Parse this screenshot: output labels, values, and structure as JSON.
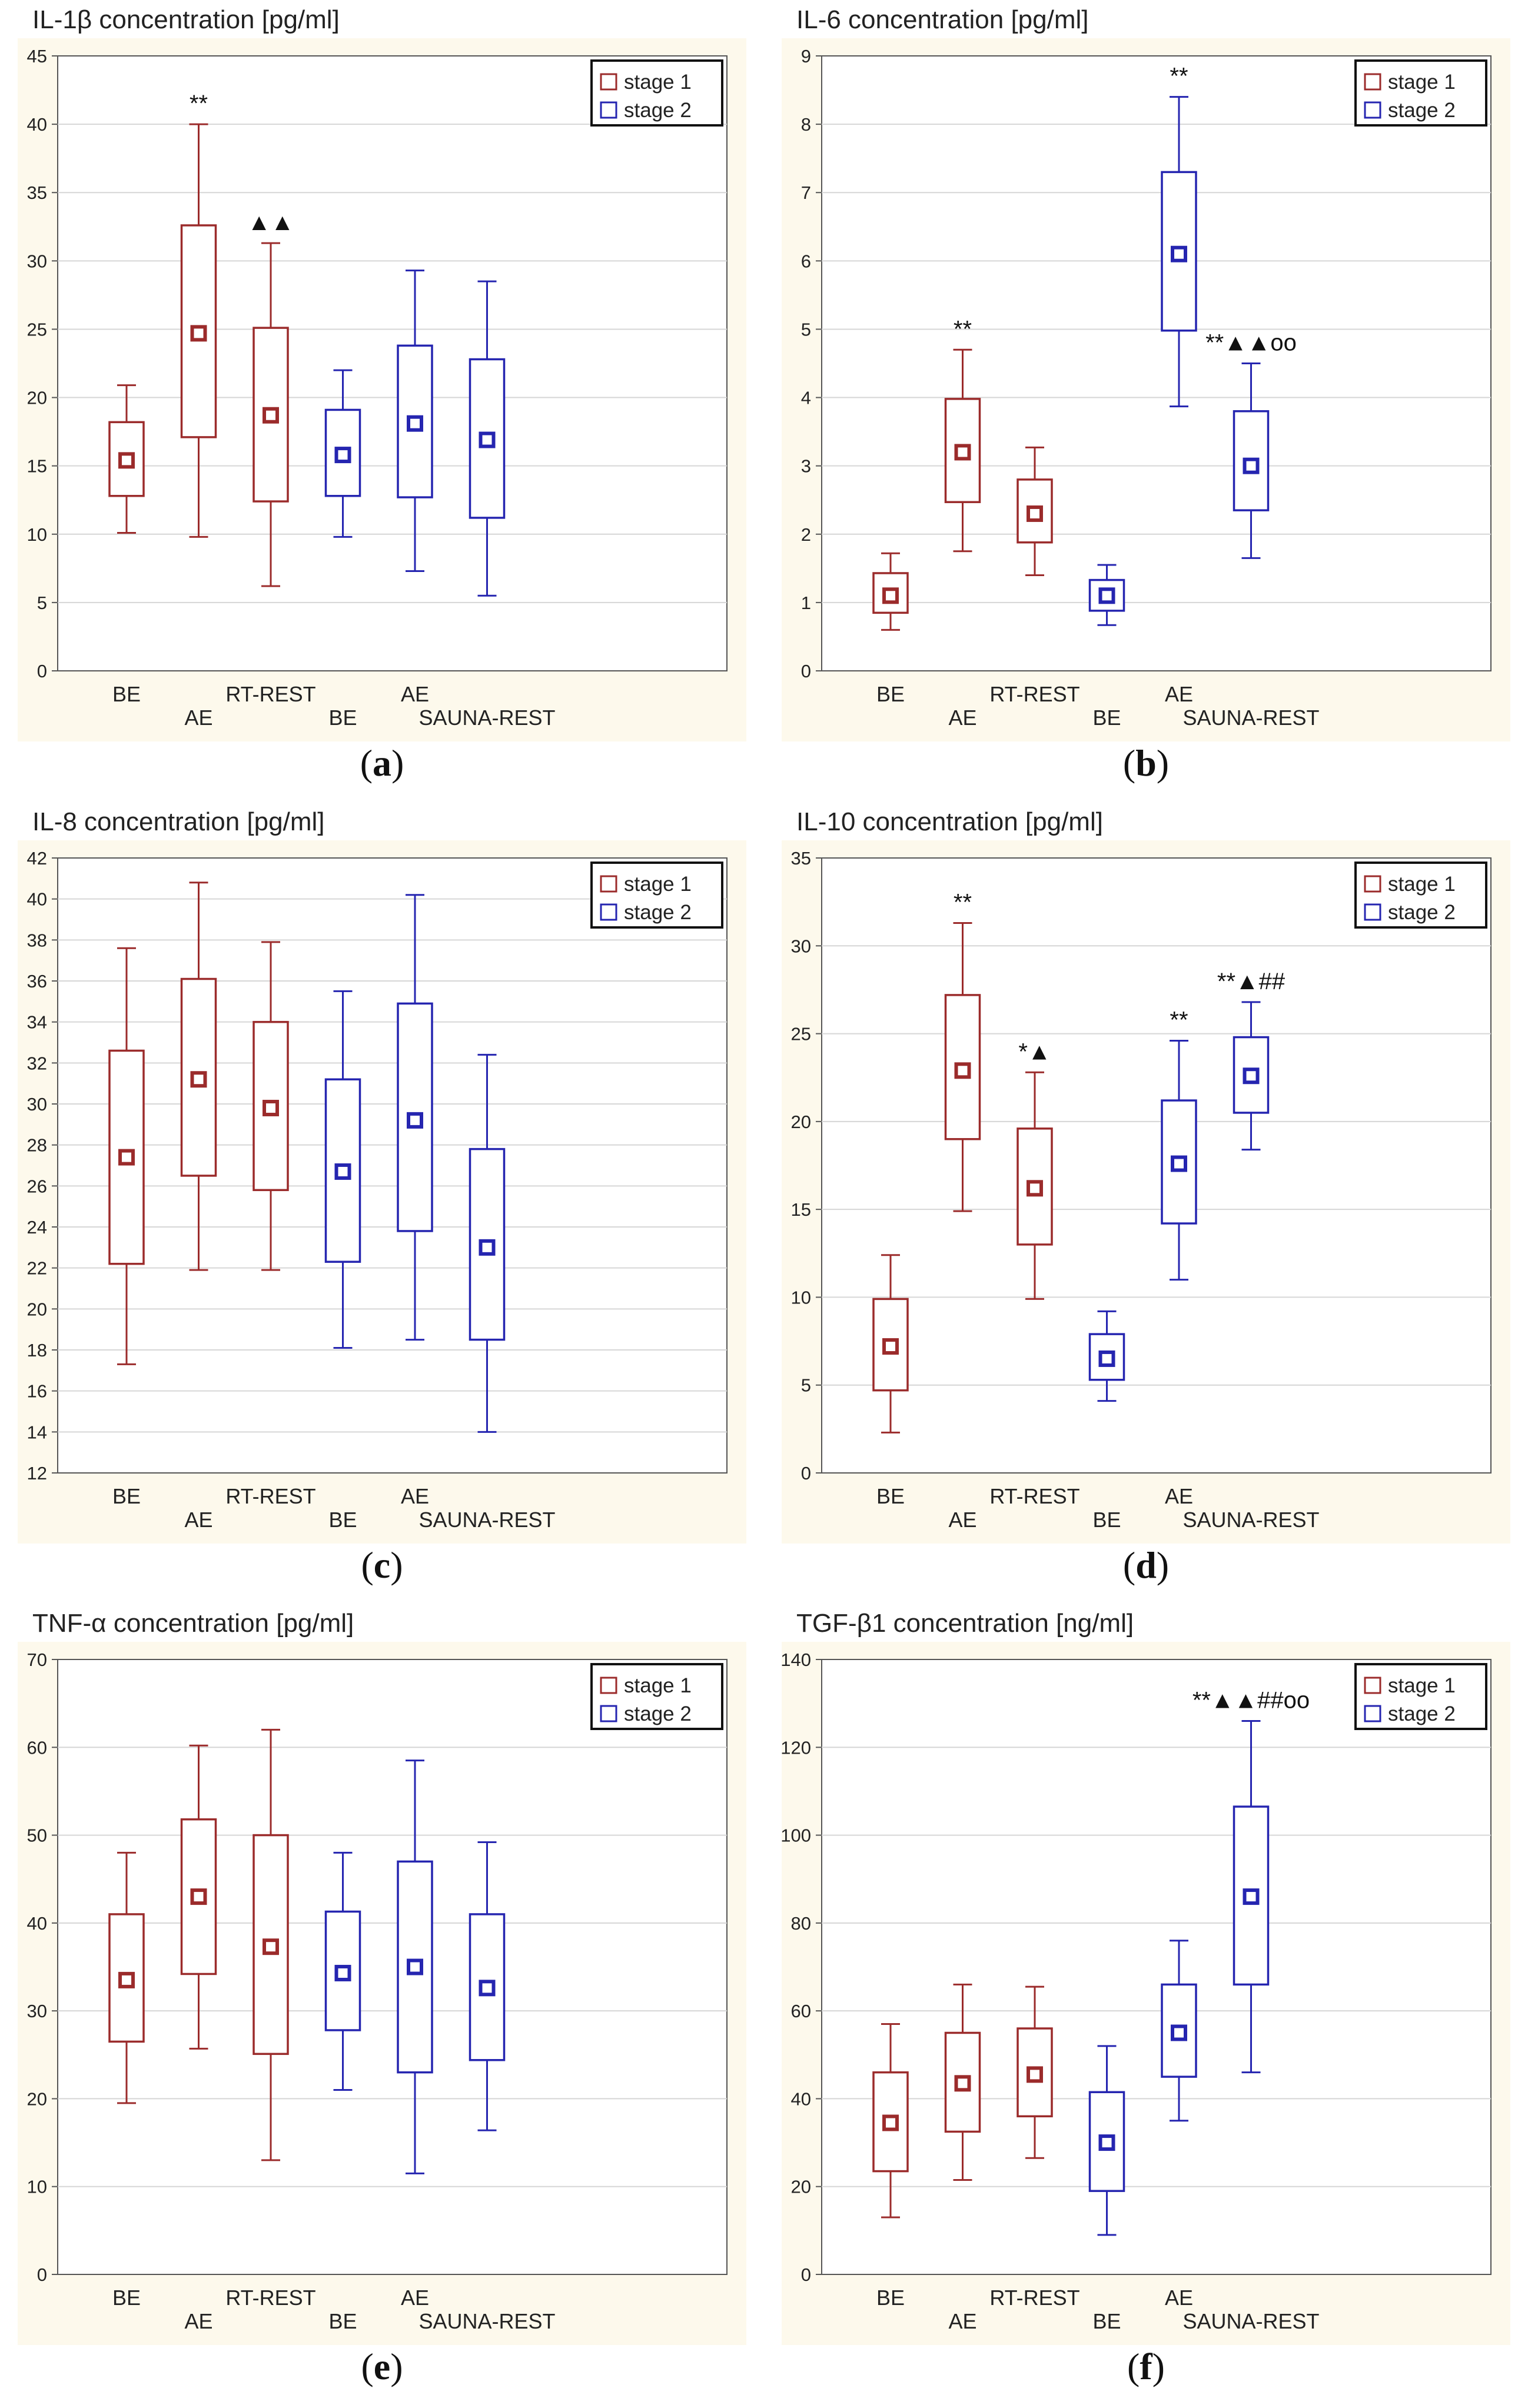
{
  "colors": {
    "stage1": "#9b2b2b",
    "stage2": "#2525b0",
    "background": "#fdf9ec",
    "grid": "#d6d6d6"
  },
  "chart_data": [
    {
      "type": "box",
      "title": "IL-1β concentration [pg/ml]",
      "caption_letter": "a",
      "ylim": [
        0,
        45
      ],
      "yticks": [
        0,
        5,
        10,
        15,
        20,
        25,
        30,
        35,
        40,
        45
      ],
      "grid": true,
      "legend": {
        "position": "top-right",
        "entries": [
          "stage 1",
          "stage 2"
        ]
      },
      "categories": [
        {
          "label": "BE",
          "row": "upper"
        },
        {
          "label": "AE",
          "row": "lower"
        },
        {
          "label": "RT-REST",
          "row": "upper"
        },
        {
          "label": "BE",
          "row": "lower"
        },
        {
          "label": "AE",
          "row": "upper"
        },
        {
          "label": "SAUNA-REST",
          "row": "lower"
        }
      ],
      "series": [
        {
          "name": "stage 1",
          "boxes": [
            {
              "min": 10.1,
              "q1": 12.8,
              "mean": 15.4,
              "q3": 18.2,
              "max": 20.9,
              "annotation": ""
            },
            {
              "min": 9.8,
              "q1": 17.1,
              "mean": 24.7,
              "q3": 32.6,
              "max": 40.0,
              "annotation": "**"
            },
            {
              "min": 6.2,
              "q1": 12.4,
              "mean": 18.7,
              "q3": 25.1,
              "max": 31.3,
              "annotation": "▲▲"
            }
          ]
        },
        {
          "name": "stage 2",
          "boxes": [
            {
              "min": 9.8,
              "q1": 12.8,
              "mean": 15.8,
              "q3": 19.1,
              "max": 22.0,
              "annotation": ""
            },
            {
              "min": 7.3,
              "q1": 12.7,
              "mean": 18.1,
              "q3": 23.8,
              "max": 29.3,
              "annotation": ""
            },
            {
              "min": 5.5,
              "q1": 11.2,
              "mean": 16.9,
              "q3": 22.8,
              "max": 28.5,
              "annotation": ""
            }
          ]
        }
      ]
    },
    {
      "type": "box",
      "title": "IL-6 concentration [pg/ml]",
      "caption_letter": "b",
      "ylim": [
        0,
        9
      ],
      "yticks": [
        0,
        1,
        2,
        3,
        4,
        5,
        6,
        7,
        8,
        9
      ],
      "grid": true,
      "legend": {
        "position": "top-right",
        "entries": [
          "stage 1",
          "stage 2"
        ]
      },
      "categories": [
        {
          "label": "BE",
          "row": "upper"
        },
        {
          "label": "AE",
          "row": "lower"
        },
        {
          "label": "RT-REST",
          "row": "upper"
        },
        {
          "label": "BE",
          "row": "lower"
        },
        {
          "label": "AE",
          "row": "upper"
        },
        {
          "label": "SAUNA-REST",
          "row": "lower"
        }
      ],
      "series": [
        {
          "name": "stage 1",
          "boxes": [
            {
              "min": 0.6,
              "q1": 0.85,
              "mean": 1.1,
              "q3": 1.43,
              "max": 1.72,
              "annotation": ""
            },
            {
              "min": 1.75,
              "q1": 2.47,
              "mean": 3.2,
              "q3": 3.98,
              "max": 4.7,
              "annotation": "**"
            },
            {
              "min": 1.4,
              "q1": 1.88,
              "mean": 2.3,
              "q3": 2.8,
              "max": 3.27,
              "annotation": ""
            }
          ]
        },
        {
          "name": "stage 2",
          "boxes": [
            {
              "min": 0.67,
              "q1": 0.88,
              "mean": 1.1,
              "q3": 1.33,
              "max": 1.55,
              "annotation": ""
            },
            {
              "min": 3.87,
              "q1": 4.98,
              "mean": 6.1,
              "q3": 7.3,
              "max": 8.4,
              "annotation": "**"
            },
            {
              "min": 1.65,
              "q1": 2.35,
              "mean": 3.0,
              "q3": 3.8,
              "max": 4.5,
              "annotation": "**▲▲oo"
            }
          ]
        }
      ]
    },
    {
      "type": "box",
      "title": "IL-8 concentration [pg/ml]",
      "caption_letter": "c",
      "ylim": [
        12,
        42
      ],
      "yticks": [
        12,
        14,
        16,
        18,
        20,
        22,
        24,
        26,
        28,
        30,
        32,
        34,
        36,
        38,
        40,
        42
      ],
      "grid": true,
      "legend": {
        "position": "top-right",
        "entries": [
          "stage 1",
          "stage 2"
        ]
      },
      "categories": [
        {
          "label": "BE",
          "row": "upper"
        },
        {
          "label": "AE",
          "row": "lower"
        },
        {
          "label": "RT-REST",
          "row": "upper"
        },
        {
          "label": "BE",
          "row": "lower"
        },
        {
          "label": "AE",
          "row": "upper"
        },
        {
          "label": "SAUNA-REST",
          "row": "lower"
        }
      ],
      "series": [
        {
          "name": "stage 1",
          "boxes": [
            {
              "min": 17.3,
              "q1": 22.2,
              "mean": 27.4,
              "q3": 32.6,
              "max": 37.6,
              "annotation": ""
            },
            {
              "min": 21.9,
              "q1": 26.5,
              "mean": 31.2,
              "q3": 36.1,
              "max": 40.8,
              "annotation": ""
            },
            {
              "min": 21.9,
              "q1": 25.8,
              "mean": 29.8,
              "q3": 34.0,
              "max": 37.9,
              "annotation": ""
            }
          ]
        },
        {
          "name": "stage 2",
          "boxes": [
            {
              "min": 18.1,
              "q1": 22.3,
              "mean": 26.7,
              "q3": 31.2,
              "max": 35.5,
              "annotation": ""
            },
            {
              "min": 18.5,
              "q1": 23.8,
              "mean": 29.2,
              "q3": 34.9,
              "max": 40.2,
              "annotation": ""
            },
            {
              "min": 14.0,
              "q1": 18.5,
              "mean": 23.0,
              "q3": 27.8,
              "max": 32.4,
              "annotation": ""
            }
          ]
        }
      ]
    },
    {
      "type": "box",
      "title": "IL-10 concentration [pg/ml]",
      "caption_letter": "d",
      "ylim": [
        0,
        35
      ],
      "yticks": [
        0,
        5,
        10,
        15,
        20,
        25,
        30,
        35
      ],
      "grid": true,
      "legend": {
        "position": "top-right",
        "entries": [
          "stage 1",
          "stage 2"
        ]
      },
      "categories": [
        {
          "label": "BE",
          "row": "upper"
        },
        {
          "label": "AE",
          "row": "lower"
        },
        {
          "label": "RT-REST",
          "row": "upper"
        },
        {
          "label": "BE",
          "row": "lower"
        },
        {
          "label": "AE",
          "row": "upper"
        },
        {
          "label": "SAUNA-REST",
          "row": "lower"
        }
      ],
      "series": [
        {
          "name": "stage 1",
          "boxes": [
            {
              "min": 2.3,
              "q1": 4.7,
              "mean": 7.2,
              "q3": 9.9,
              "max": 12.4,
              "annotation": ""
            },
            {
              "min": 14.9,
              "q1": 19.0,
              "mean": 22.9,
              "q3": 27.2,
              "max": 31.3,
              "annotation": "**"
            },
            {
              "min": 9.9,
              "q1": 13.0,
              "mean": 16.2,
              "q3": 19.6,
              "max": 22.8,
              "annotation": "*▲"
            }
          ]
        },
        {
          "name": "stage 2",
          "boxes": [
            {
              "min": 4.1,
              "q1": 5.3,
              "mean": 6.5,
              "q3": 7.9,
              "max": 9.2,
              "annotation": ""
            },
            {
              "min": 11.0,
              "q1": 14.2,
              "mean": 17.6,
              "q3": 21.2,
              "max": 24.6,
              "annotation": "**"
            },
            {
              "min": 18.4,
              "q1": 20.5,
              "mean": 22.6,
              "q3": 24.8,
              "max": 26.8,
              "annotation": "**▲##"
            }
          ]
        }
      ]
    },
    {
      "type": "box",
      "title": "TNF-α concentration [pg/ml]",
      "caption_letter": "e",
      "ylim": [
        0,
        70
      ],
      "yticks": [
        0,
        10,
        20,
        30,
        40,
        50,
        60,
        70
      ],
      "grid": true,
      "legend": {
        "position": "top-right",
        "entries": [
          "stage 1",
          "stage 2"
        ]
      },
      "categories": [
        {
          "label": "BE",
          "row": "upper"
        },
        {
          "label": "AE",
          "row": "lower"
        },
        {
          "label": "RT-REST",
          "row": "upper"
        },
        {
          "label": "BE",
          "row": "lower"
        },
        {
          "label": "AE",
          "row": "upper"
        },
        {
          "label": "SAUNA-REST",
          "row": "lower"
        }
      ],
      "series": [
        {
          "name": "stage 1",
          "boxes": [
            {
              "min": 19.5,
              "q1": 26.5,
              "mean": 33.5,
              "q3": 41.0,
              "max": 48.0,
              "annotation": ""
            },
            {
              "min": 25.7,
              "q1": 34.2,
              "mean": 43.0,
              "q3": 51.8,
              "max": 60.2,
              "annotation": ""
            },
            {
              "min": 13.0,
              "q1": 25.1,
              "mean": 37.3,
              "q3": 50.0,
              "max": 62.0,
              "annotation": ""
            }
          ]
        },
        {
          "name": "stage 2",
          "boxes": [
            {
              "min": 21.0,
              "q1": 27.8,
              "mean": 34.3,
              "q3": 41.3,
              "max": 48.0,
              "annotation": ""
            },
            {
              "min": 11.5,
              "q1": 23.0,
              "mean": 35.0,
              "q3": 47.0,
              "max": 58.5,
              "annotation": ""
            },
            {
              "min": 16.4,
              "q1": 24.4,
              "mean": 32.6,
              "q3": 41.0,
              "max": 49.2,
              "annotation": ""
            }
          ]
        }
      ]
    },
    {
      "type": "box",
      "title": "TGF-β1 concentration [ng/ml]",
      "caption_letter": "f",
      "ylim": [
        0,
        140
      ],
      "yticks": [
        0,
        20,
        40,
        60,
        80,
        100,
        120,
        140
      ],
      "grid": true,
      "legend": {
        "position": "top-right",
        "entries": [
          "stage 1",
          "stage 2"
        ]
      },
      "categories": [
        {
          "label": "BE",
          "row": "upper"
        },
        {
          "label": "AE",
          "row": "lower"
        },
        {
          "label": "RT-REST",
          "row": "upper"
        },
        {
          "label": "BE",
          "row": "lower"
        },
        {
          "label": "AE",
          "row": "upper"
        },
        {
          "label": "SAUNA-REST",
          "row": "lower"
        }
      ],
      "series": [
        {
          "name": "stage 1",
          "boxes": [
            {
              "min": 13.0,
              "q1": 23.5,
              "mean": 34.5,
              "q3": 46.0,
              "max": 57.0,
              "annotation": ""
            },
            {
              "min": 21.5,
              "q1": 32.5,
              "mean": 43.5,
              "q3": 55.0,
              "max": 66.0,
              "annotation": ""
            },
            {
              "min": 26.5,
              "q1": 36.0,
              "mean": 45.5,
              "q3": 56.0,
              "max": 65.5,
              "annotation": ""
            }
          ]
        },
        {
          "name": "stage 2",
          "boxes": [
            {
              "min": 9.0,
              "q1": 19.0,
              "mean": 30.0,
              "q3": 41.5,
              "max": 52.0,
              "annotation": ""
            },
            {
              "min": 35.0,
              "q1": 45.0,
              "mean": 55.0,
              "q3": 66.0,
              "max": 76.0,
              "annotation": ""
            },
            {
              "min": 46.0,
              "q1": 66.0,
              "mean": 86.0,
              "q3": 106.5,
              "max": 126.0,
              "annotation": "**▲▲##oo"
            }
          ]
        }
      ]
    }
  ]
}
